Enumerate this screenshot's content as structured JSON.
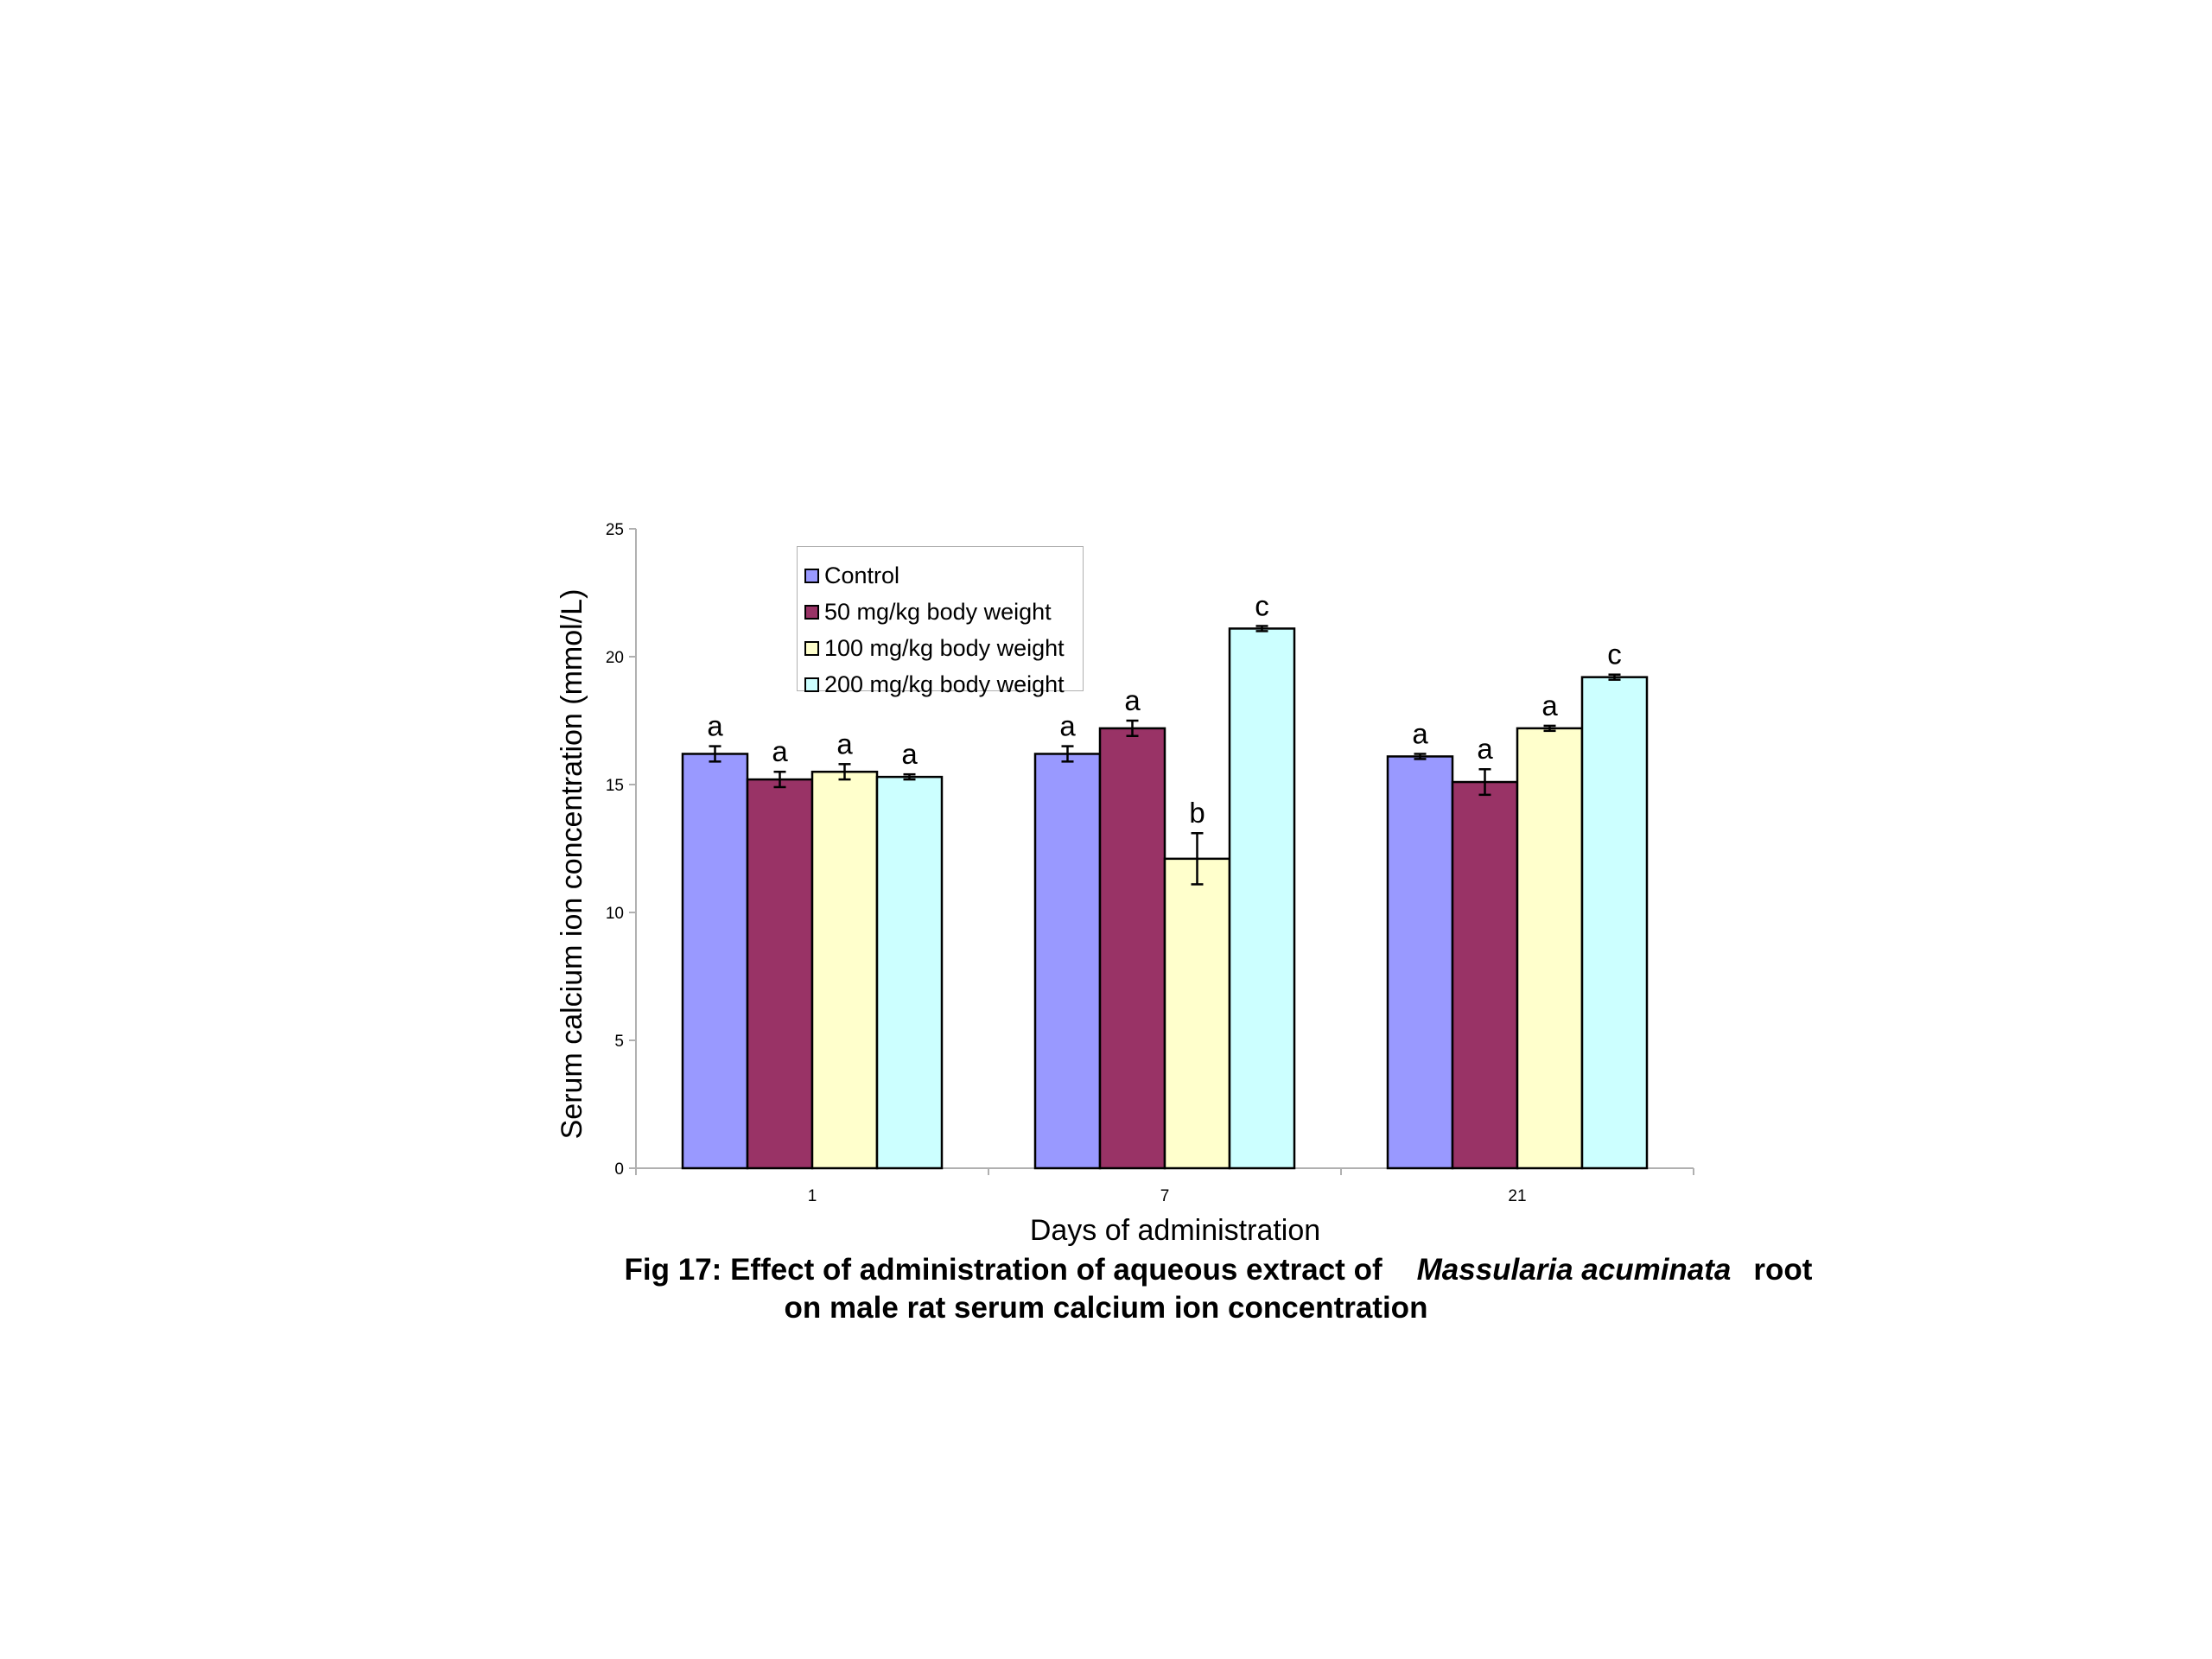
{
  "chart_data": {
    "type": "bar",
    "ylabel": "Serum calcium ion concentration (mmol/L)",
    "xlabel": "Days of administration",
    "ylim": [
      0,
      25
    ],
    "yticks": [
      0,
      5,
      10,
      15,
      20,
      25
    ],
    "categories": [
      "1",
      "7",
      "21"
    ],
    "series": [
      {
        "name": "Control",
        "color": "#9999ff",
        "values": [
          16.2,
          16.2,
          16.1
        ],
        "errors": [
          0.3,
          0.3,
          0.1
        ],
        "letters": [
          "a",
          "a",
          "a"
        ]
      },
      {
        "name": "50 mg/kg body weight",
        "color": "#993366",
        "values": [
          15.2,
          17.2,
          15.1
        ],
        "errors": [
          0.3,
          0.3,
          0.5
        ],
        "letters": [
          "a",
          "a",
          "a"
        ]
      },
      {
        "name": "100 mg/kg body weight",
        "color": "#ffffcc",
        "values": [
          15.5,
          12.1,
          17.2
        ],
        "errors": [
          0.3,
          1.0,
          0.1
        ],
        "letters": [
          "a",
          "b",
          "a"
        ]
      },
      {
        "name": "200 mg/kg body weight",
        "color": "#ccffff",
        "values": [
          15.3,
          21.1,
          19.2
        ],
        "errors": [
          0.1,
          0.1,
          0.1
        ],
        "letters": [
          "a",
          "c",
          "c"
        ]
      }
    ],
    "legend_position": "top-left"
  },
  "caption": {
    "line1_prefix": "Fig 17: Effect of administration of aqueous extract of",
    "line1_species": "Massularia acuminata",
    "line1_suffix": "root",
    "line2": "on male rat serum calcium ion concentration"
  }
}
